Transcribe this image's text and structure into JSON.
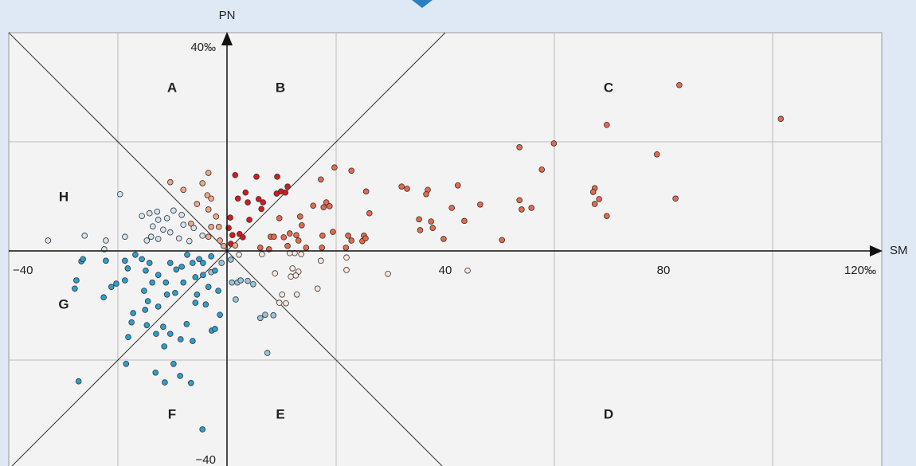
{
  "chart_data": {
    "type": "scatter",
    "x_label": "SM",
    "y_label": "PN",
    "regions": [
      "A",
      "B",
      "C",
      "D",
      "E",
      "F",
      "G",
      "H"
    ],
    "xlim": [
      -40,
      120
    ],
    "ylim": [
      -40,
      40
    ],
    "xticks": [
      {
        "value": -40,
        "label": "−40"
      },
      40,
      80,
      {
        "value": 120,
        "label": "120‰"
      }
    ],
    "yticks": [
      {
        "value": 40,
        "label": "40‰"
      },
      {
        "value": -40,
        "label": "−40"
      }
    ],
    "xgrid": [
      -20,
      0,
      20,
      60,
      100
    ],
    "ygrid": [
      -20,
      0,
      20
    ],
    "grid": true,
    "series": [
      {
        "color": "#e8684a",
        "x": [
          82.9,
          101.5,
          69.6,
          59.9,
          53.6,
          78.8,
          57.7,
          67.4,
          67.1,
          68.2,
          67.4,
          82.2,
          53.6,
          54.0,
          55.8,
          69.6,
          46.4,
          42.3,
          41.2,
          43.5,
          36.8,
          36.5,
          32.0,
          33.0,
          35.2,
          37.4,
          37.7,
          35.4,
          39.7,
          50.4,
          25.5,
          26.1,
          22.8,
          19.7,
          17.2,
          18.2,
          18.8,
          17.7,
          15.8,
          19.4,
          17.5,
          22.2,
          22.8,
          25.1,
          24.8,
          25.4,
          21.8,
          13.4,
          9.6,
          13.7,
          12.7,
          11.5,
          13.1,
          8.0,
          8.6,
          10.4,
          7.7,
          11.1,
          14.5,
          17.4,
          6.1
        ],
        "y": [
          30.4,
          24.2,
          23.1,
          19.7,
          19.0,
          17.7,
          14.9,
          11.5,
          10.8,
          9.5,
          8.6,
          9.6,
          9.3,
          7.6,
          7.9,
          6.4,
          8.5,
          12.0,
          7.9,
          5.5,
          11.2,
          10.4,
          11.8,
          11.4,
          5.8,
          5.4,
          4.2,
          3.8,
          2.2,
          2.0,
          10.9,
          6.9,
          14.7,
          15.3,
          13.1,
          8.9,
          8.2,
          8.0,
          8.3,
          3.5,
          2.8,
          2.8,
          1.9,
          2.8,
          1.8,
          2.3,
          0.6,
          6.3,
          6.0,
          4.7,
          2.9,
          3.2,
          1.9,
          2.6,
          2.6,
          2.5,
          0.3,
          0.9,
          0.6,
          0.6,
          0.6
        ]
      },
      {
        "color": "#d7191c",
        "x": [
          1.5,
          5.4,
          9.2,
          11.1,
          9.9,
          10.7,
          3.4,
          2.0,
          3.8,
          5.8,
          6.6,
          6.3,
          9.1,
          4.1,
          0.6,
          2.3,
          1.0,
          2.9,
          0.7,
          0.3
        ],
        "y": [
          13.9,
          13.6,
          13.6,
          11.8,
          10.9,
          10.7,
          10.7,
          9.6,
          8.9,
          9.5,
          8.9,
          7.7,
          10.5,
          5.7,
          6.1,
          3.1,
          2.9,
          2.5,
          1.3,
          4.2
        ]
      },
      {
        "color": "#f4a582",
        "x": [
          -3.4,
          -10.4,
          -4.5,
          -8.0,
          -3.6,
          -2.9,
          -5.5,
          -3.4,
          -2.0,
          -2.9,
          -1.5,
          -3.4,
          -0.6,
          1.5,
          -1.3,
          -6.6
        ],
        "y": [
          14.3,
          12.6,
          12.4,
          11.2,
          10.2,
          9.6,
          8.6,
          7.6,
          6.3,
          4.4,
          4.4,
          2.6,
          0.9,
          1.0,
          1.9,
          5.0
        ]
      },
      {
        "color": "#fbe6dc",
        "x": [
          21.9,
          21.9,
          17.2,
          13.6,
          12.4,
          11.5,
          12.0,
          13.1,
          11.7,
          12.6,
          8.8,
          16.6,
          12.8,
          10.1,
          9.6,
          10.8,
          29.5,
          44.1,
          6.4,
          2.2
        ],
        "y": [
          -1.2,
          -3.5,
          -1.8,
          -0.6,
          -0.4,
          -0.4,
          -3.2,
          -3.8,
          -4.7,
          -4.5,
          -4.1,
          -6.9,
          -8.0,
          -8.0,
          -9.5,
          -9.6,
          -4.2,
          -3.6,
          -0.6,
          -0.7
        ]
      },
      {
        "color": "#d1e5f0",
        "x": [
          -19.6,
          -15.6,
          -14.2,
          -12.8,
          -9.8,
          -8.3,
          -12.6,
          -11.0,
          -13.6,
          -11.7,
          -10.4,
          -13.9,
          -12.6,
          -14.7,
          -18.7,
          -22.2,
          -26.1,
          -32.8,
          -22.5,
          -8.0,
          -6.1,
          -4.5,
          -6.9,
          -8.8
        ],
        "y": [
          10.4,
          6.4,
          6.9,
          7.2,
          7.4,
          6.6,
          5.7,
          6.0,
          4.5,
          3.9,
          3.4,
          2.6,
          2.2,
          1.9,
          2.6,
          1.9,
          2.8,
          1.9,
          0.3,
          4.8,
          4.2,
          2.8,
          1.8,
          2.3
        ]
      },
      {
        "color": "#92c5de",
        "x": [
          0.7,
          1.9,
          0.9,
          2.5,
          3.8,
          4.8,
          1.6,
          7.0,
          8.5,
          6.1,
          7.4,
          -1.0,
          -2.9
        ],
        "y": [
          -1.6,
          -5.8,
          -5.8,
          -5.4,
          -5.5,
          -6.1,
          -8.9,
          -11.7,
          -11.8,
          -12.3,
          -18.7,
          -2.2,
          -3.9
        ]
      },
      {
        "color": "#2a9fd0",
        "x": [
          -26.7,
          -26.4,
          -22.2,
          -27.6,
          -27.9,
          -22.6,
          -21.2,
          -20.3,
          -18.7,
          -18.7,
          -18.2,
          -16.8,
          -15.6,
          -14.2,
          -14.9,
          -13.7,
          -15.2,
          -12.6,
          -11.2,
          -10.4,
          -9.3,
          -8.3,
          -6.3,
          -5.1,
          -4.4,
          -2.9,
          -5.8,
          -8.0,
          -9.5,
          -11.0,
          -12.6,
          -14.5,
          -15.0,
          -17.2,
          -17.5,
          -18.1,
          -14.7,
          -11.7,
          -13.0,
          -10.4,
          -11.5,
          -8.5,
          -7.4,
          -5.8,
          -5.5,
          -3.9,
          -3.4,
          -1.6,
          -1.3,
          -2.8,
          -2.2,
          -6.3,
          -18.5,
          -9.8,
          -13.1,
          -11.4,
          -8.6,
          -6.6,
          -27.2,
          -4.5,
          -2.2,
          -7.3,
          -4.4
        ],
        "y": [
          -1.9,
          -1.5,
          -1.8,
          -5.4,
          -6.9,
          -8.5,
          -6.6,
          -6.0,
          -5.4,
          -1.8,
          -3.2,
          -0.7,
          -1.5,
          -2.2,
          -3.6,
          -5.8,
          -7.3,
          -4.4,
          -5.8,
          -2.2,
          -3.4,
          -2.9,
          -2.2,
          -1.5,
          -2.2,
          -1.0,
          -4.8,
          -5.8,
          -7.7,
          -8.0,
          -10.2,
          -9.2,
          -10.8,
          -11.4,
          -13.1,
          -15.8,
          -13.6,
          -13.9,
          -15.2,
          -15.2,
          -17.5,
          -16.2,
          -13.4,
          -9.5,
          -8.0,
          -9.8,
          -6.6,
          -7.3,
          -11.7,
          -14.6,
          -14.3,
          -16.5,
          -20.7,
          -20.7,
          -22.3,
          -24.1,
          -22.9,
          -24.2,
          -23.9,
          -32.7,
          -3.6,
          -0.7,
          -4.4
        ]
      }
    ]
  }
}
